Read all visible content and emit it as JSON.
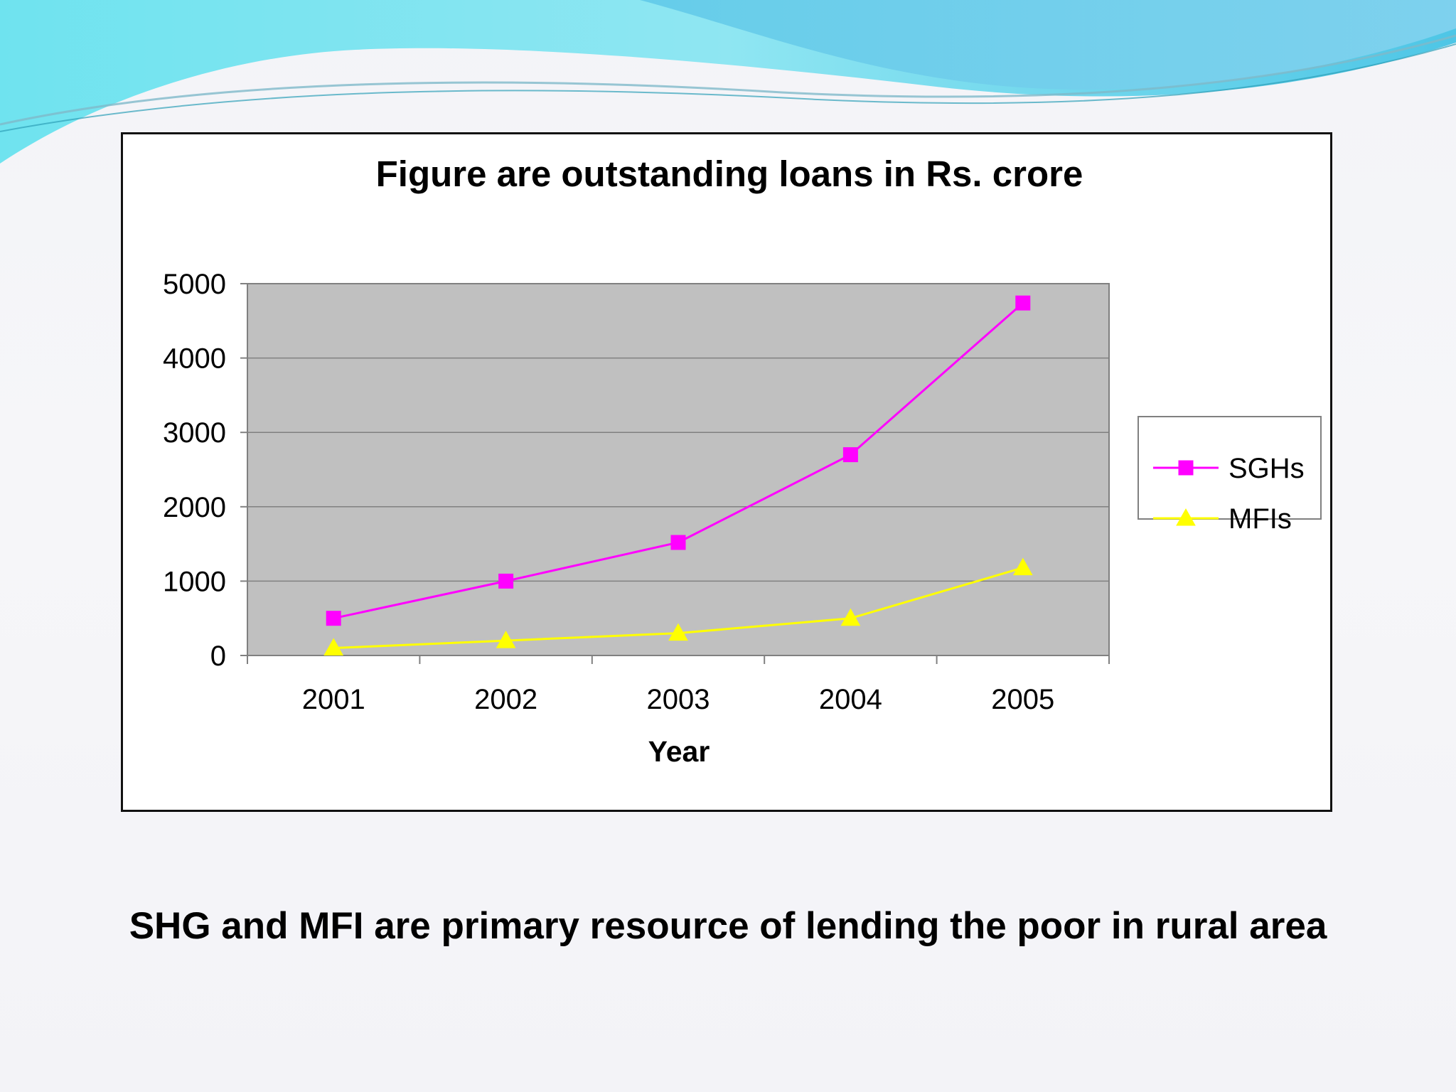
{
  "slide": {
    "caption": "SHG and MFI are primary resource of lending the poor in rural area"
  },
  "chart_data": {
    "type": "line",
    "title": "Figure are outstanding loans in Rs. crore",
    "xlabel": "Year",
    "ylabel": "",
    "categories": [
      "2001",
      "2002",
      "2003",
      "2004",
      "2005"
    ],
    "ylim": [
      0,
      5000
    ],
    "yticks": [
      0,
      1000,
      2000,
      3000,
      4000,
      5000
    ],
    "grid": true,
    "legend_position": "right",
    "plot_background": "#c0c0c0",
    "series": [
      {
        "name": "SGHs",
        "values": [
          500,
          1000,
          1520,
          2700,
          4740
        ],
        "color": "#ff00ff",
        "marker": "square"
      },
      {
        "name": "MFIs",
        "values": [
          100,
          200,
          300,
          500,
          1180
        ],
        "color": "#ffff00",
        "marker": "triangle"
      }
    ]
  }
}
